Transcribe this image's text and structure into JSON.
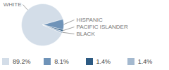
{
  "chart_data": {
    "type": "pie",
    "categories": [
      "WHITE",
      "HISPANIC",
      "PACIFIC ISLANDER",
      "BLACK"
    ],
    "values": [
      89.2,
      8.1,
      1.4,
      1.4
    ],
    "value_labels": [
      "89.2%",
      "8.1%",
      "1.4%",
      "1.4%"
    ],
    "colors": [
      "#d3dde8",
      "#6f93b8",
      "#2d5a82",
      "#a4b9cf"
    ],
    "legend": "bottom"
  }
}
